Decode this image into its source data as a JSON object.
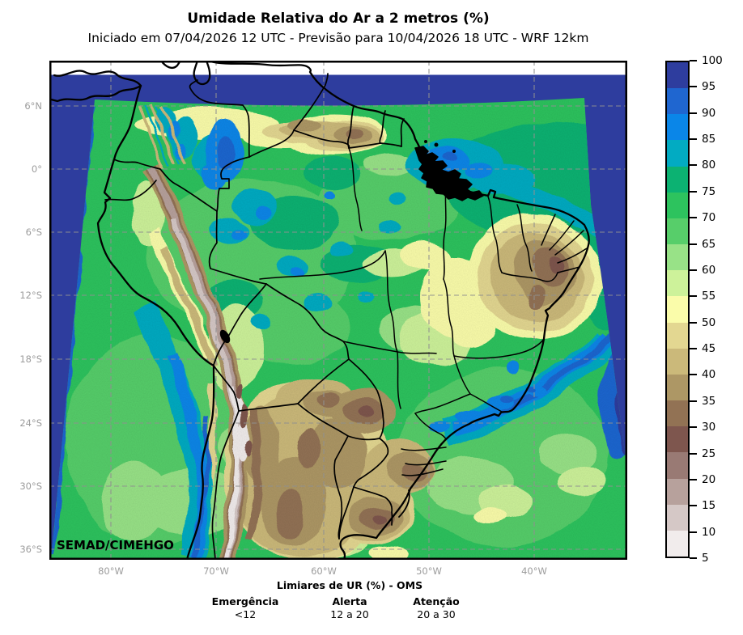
{
  "title": "Umidade Relativa do Ar a 2 metros (%)",
  "subtitle": "Iniciado em 07/04/2026 12 UTC - Previsão para 10/04/2026 18 UTC - WRF 12km",
  "map": {
    "watermark": "SEMAD/CIMEHGO"
  },
  "axes": {
    "lat_labels": [
      "6°N",
      "0°",
      "6°S",
      "12°S",
      "18°S",
      "24°S",
      "30°S",
      "36°S"
    ],
    "lon_labels": [
      "80°W",
      "70°W",
      "60°W",
      "50°W",
      "40°W"
    ]
  },
  "colorbar": {
    "tick_labels": [
      "100",
      "95",
      "90",
      "85",
      "80",
      "75",
      "70",
      "65",
      "60",
      "55",
      "50",
      "45",
      "40",
      "35",
      "30",
      "25",
      "20",
      "15",
      "10",
      "5"
    ],
    "cell_colors_top_to_bottom": [
      "#2e3d9e",
      "#1f66d0",
      "#0a86e8",
      "#02abc2",
      "#0cb272",
      "#2dc35e",
      "#57ce6a",
      "#98e287",
      "#cdf29a",
      "#fafcaa",
      "#e3d791",
      "#cbb97a",
      "#ad9765",
      "#927254",
      "#7e564e",
      "#997a74",
      "#b7a19c",
      "#d5c8c6",
      "#f1ecec"
    ]
  },
  "thresholds": {
    "heading": "Limiares de UR (%) - OMS",
    "items": [
      {
        "label": "Emergência",
        "value": "<12"
      },
      {
        "label": "Alerta",
        "value": "12 a 20"
      },
      {
        "label": "Atenção",
        "value": "20 a 30"
      }
    ]
  },
  "chart_data": {
    "type": "heatmap",
    "title": "Umidade Relativa do Ar a 2 metros (%)",
    "subtitle": "Iniciado em 07/04/2026 12 UTC - Previsão para 10/04/2026 18 UTC - WRF 12km",
    "variable": "Umidade relativa do ar a 2 m (%)",
    "x_ticks": [
      "80°W",
      "70°W",
      "60°W",
      "50°W",
      "40°W"
    ],
    "y_ticks": [
      "6°N",
      "0°",
      "6°S",
      "12°S",
      "18°S",
      "24°S",
      "30°S",
      "36°S"
    ],
    "colorbar_levels_low_to_high": [
      5,
      10,
      15,
      20,
      25,
      30,
      35,
      40,
      45,
      50,
      55,
      60,
      65,
      70,
      75,
      80,
      85,
      90,
      95,
      100
    ],
    "colorbar_colors_low_to_high": [
      "#f1ecec",
      "#d5c8c6",
      "#b7a19c",
      "#997a74",
      "#7e564e",
      "#927254",
      "#ad9765",
      "#cbb97a",
      "#e3d791",
      "#fafcaa",
      "#cdf29a",
      "#98e287",
      "#57ce6a",
      "#2dc35e",
      "#0cb272",
      "#02abc2",
      "#0a86e8",
      "#1f66d0",
      "#2e3d9e"
    ],
    "legend_position": "right",
    "annotations": [
      "SEMAD/CIMEHGO",
      "Limiares de UR (%) - OMS",
      "Emergência <12",
      "Alerta 12 a 20",
      "Atenção 20 a 30"
    ]
  }
}
